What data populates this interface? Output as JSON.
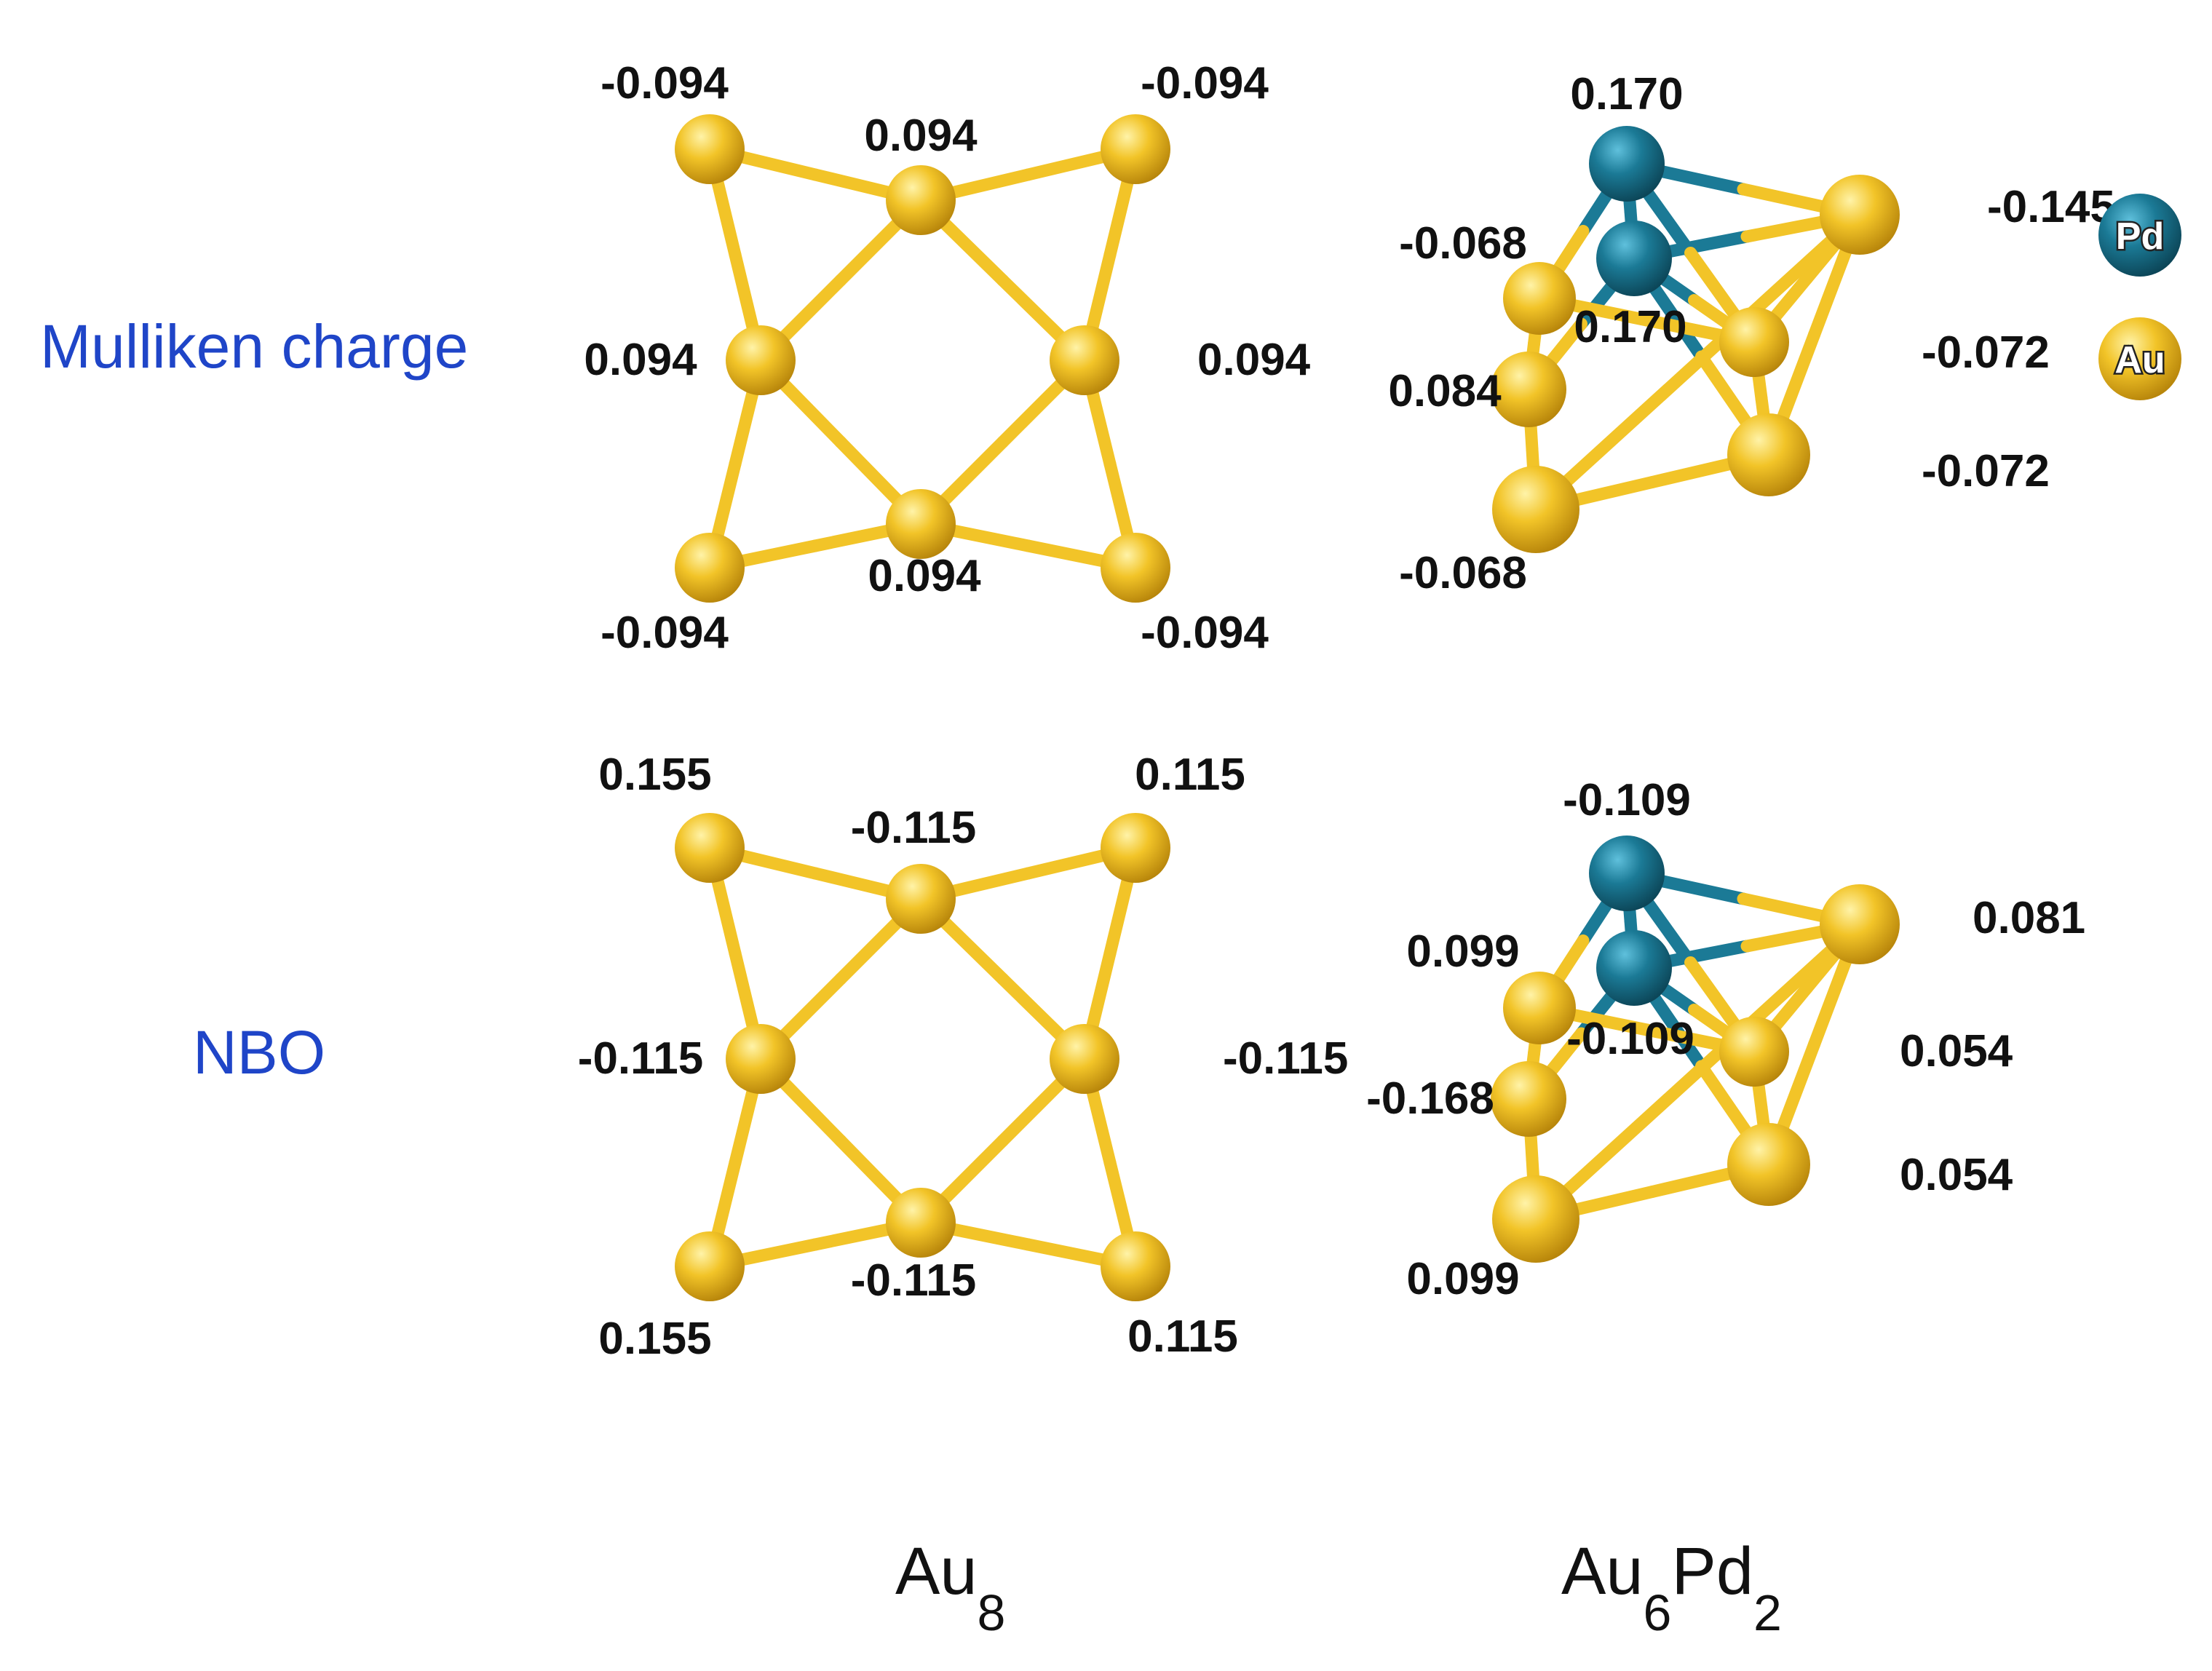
{
  "rows": [
    {
      "id": "mulliken",
      "label": "Mulliken charge"
    },
    {
      "id": "nbo",
      "label": "NBO"
    }
  ],
  "columns": [
    {
      "id": "au8",
      "base": "Au",
      "sub": "8"
    },
    {
      "id": "au6pd2",
      "base1": "Au",
      "sub1": "6",
      "base2": "Pd",
      "sub2": "2"
    }
  ],
  "legend": [
    {
      "id": "pd",
      "label": "Pd",
      "color": "#1b7a96"
    },
    {
      "id": "au",
      "label": "Au",
      "color": "#f2c428"
    }
  ],
  "colors": {
    "au": "#f2c428",
    "pd": "#1b7a96",
    "row_label": "#1f45c8"
  },
  "charges": {
    "mulliken": {
      "au8": [
        "-0.094",
        "0.094",
        "-0.094",
        "0.094",
        "0.094",
        "-0.094",
        "0.094",
        "-0.094"
      ],
      "au6pd2": [
        "0.170",
        "0.170",
        "-0.145",
        "-0.068",
        "-0.072",
        "0.084",
        "-0.072",
        "-0.068"
      ]
    },
    "nbo": {
      "au8": [
        "0.155",
        "-0.115",
        "0.115",
        "-0.115",
        "-0.115",
        "0.155",
        "-0.115",
        "0.115"
      ],
      "au6pd2": [
        "-0.109",
        "-0.109",
        "0.081",
        "0.099",
        "0.054",
        "-0.168",
        "0.054",
        "0.099"
      ]
    }
  }
}
